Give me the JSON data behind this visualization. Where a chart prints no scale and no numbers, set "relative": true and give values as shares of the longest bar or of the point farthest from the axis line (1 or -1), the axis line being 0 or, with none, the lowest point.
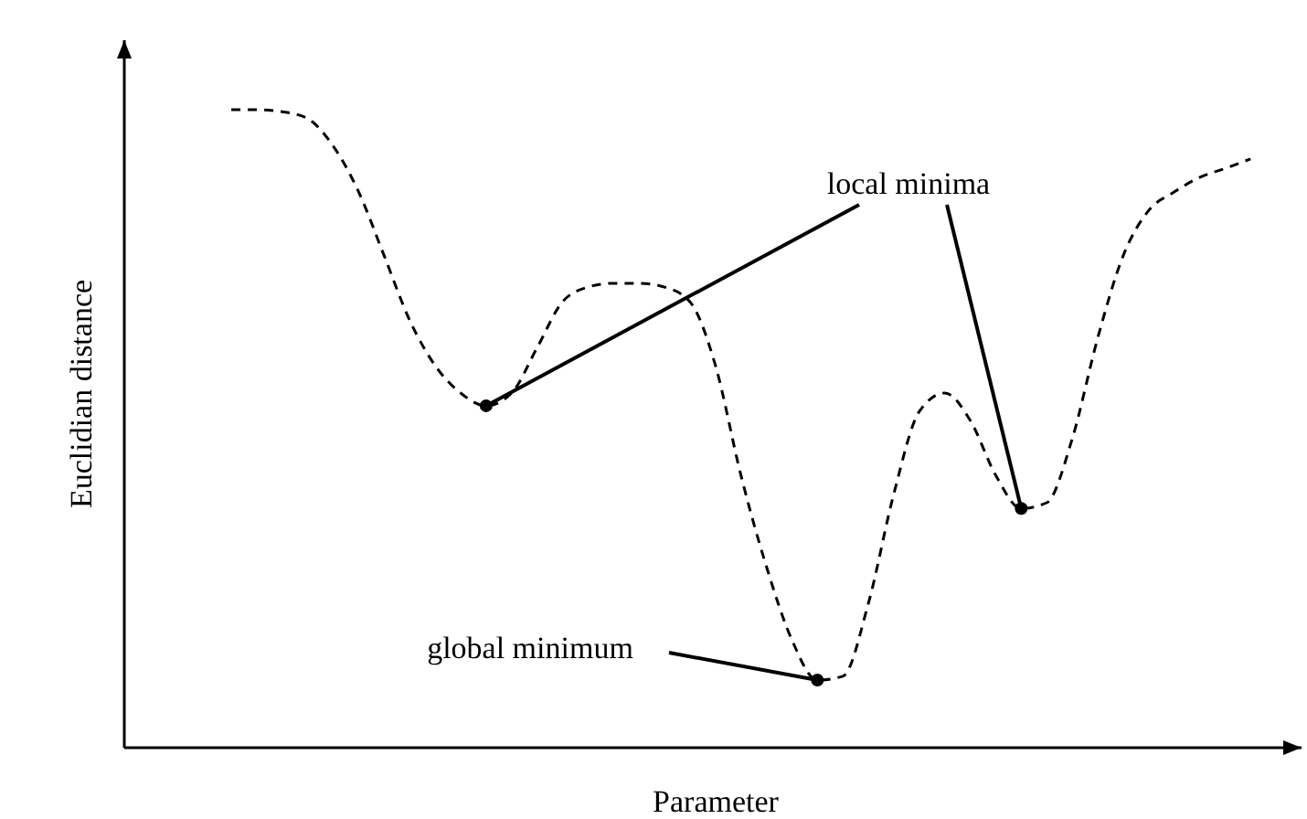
{
  "chart_data": {
    "type": "line",
    "relative": true,
    "xlabel": "Parameter",
    "ylabel": "Euclidian distance",
    "line_style": "dashed",
    "color": "#000000",
    "categories": [
      null,
      null,
      null,
      null,
      null,
      null,
      null,
      null,
      null,
      null,
      null,
      null,
      null,
      null,
      null,
      null,
      null,
      null,
      null,
      null,
      null,
      null,
      null,
      null,
      null,
      null,
      null,
      null,
      null,
      null,
      null,
      null,
      null,
      null,
      null,
      null,
      null,
      null,
      null,
      null,
      null
    ],
    "values": [
      1.0,
      1.0,
      0.997,
      0.986,
      0.943,
      0.871,
      0.771,
      0.67,
      0.599,
      0.556,
      0.536,
      0.556,
      0.627,
      0.699,
      0.722,
      0.728,
      0.728,
      0.722,
      0.699,
      0.599,
      0.427,
      0.284,
      0.169,
      0.106,
      0.112,
      0.226,
      0.398,
      0.527,
      0.556,
      0.513,
      0.427,
      0.375,
      0.384,
      0.484,
      0.642,
      0.771,
      0.842,
      0.871,
      0.894,
      0.908,
      0.923
    ],
    "annotations": [
      "local minima",
      "global minimum"
    ]
  }
}
